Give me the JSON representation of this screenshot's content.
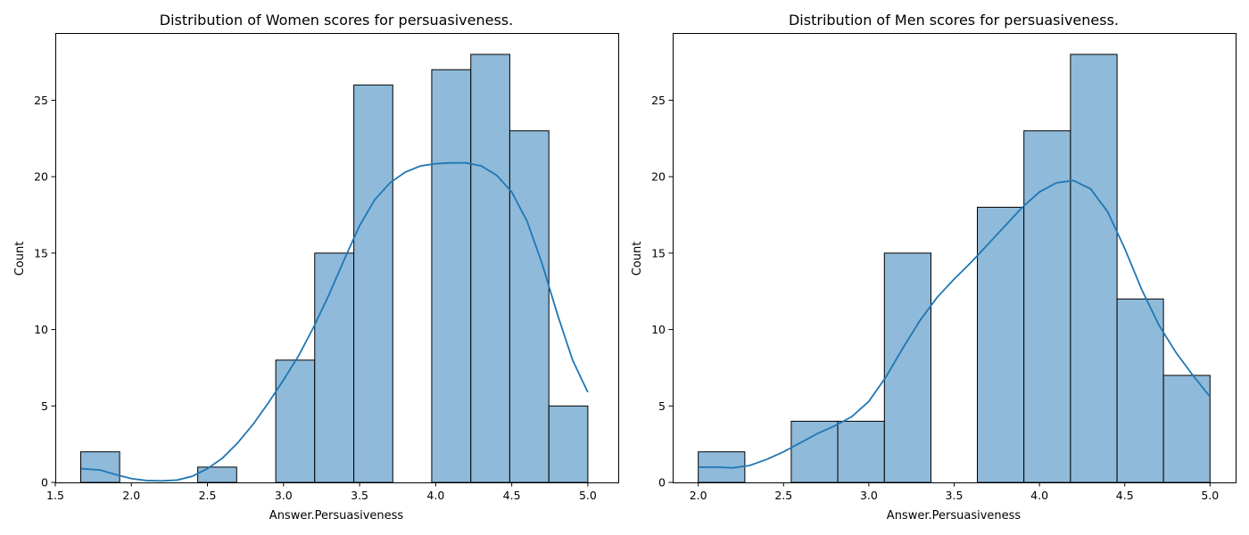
{
  "chart_data": [
    {
      "type": "histogram",
      "title": "Distribution of Women scores for persuasiveness.",
      "xlabel": "Answer.Persuasiveness",
      "ylabel": "Count",
      "xlim": [
        1.5,
        5.2
      ],
      "ylim": [
        0,
        29.4
      ],
      "xticks": [
        1.5,
        2.0,
        2.5,
        3.0,
        3.5,
        4.0,
        4.5,
        5.0
      ],
      "xtick_labels": [
        "1.5",
        "2.0",
        "2.5",
        "3.0",
        "3.5",
        "4.0",
        "4.5",
        "5.0"
      ],
      "yticks": [
        0,
        5,
        10,
        15,
        20,
        25
      ],
      "ytick_labels": [
        "0",
        "5",
        "10",
        "15",
        "20",
        "25"
      ],
      "bins": [
        {
          "x0": 1.667,
          "x1": 1.923,
          "count": 2
        },
        {
          "x0": 1.923,
          "x1": 2.179,
          "count": 0
        },
        {
          "x0": 2.179,
          "x1": 2.436,
          "count": 0
        },
        {
          "x0": 2.436,
          "x1": 2.692,
          "count": 1
        },
        {
          "x0": 2.692,
          "x1": 2.949,
          "count": 0
        },
        {
          "x0": 2.949,
          "x1": 3.205,
          "count": 8
        },
        {
          "x0": 3.205,
          "x1": 3.462,
          "count": 15
        },
        {
          "x0": 3.462,
          "x1": 3.718,
          "count": 26
        },
        {
          "x0": 3.718,
          "x1": 3.974,
          "count": 0
        },
        {
          "x0": 3.974,
          "x1": 4.231,
          "count": 27
        },
        {
          "x0": 4.231,
          "x1": 4.487,
          "count": 28
        },
        {
          "x0": 4.487,
          "x1": 4.744,
          "count": 23
        },
        {
          "x0": 4.744,
          "x1": 5.0,
          "count": 5
        }
      ],
      "kde": {
        "x": [
          1.67,
          1.8,
          1.9,
          2.0,
          2.1,
          2.2,
          2.3,
          2.4,
          2.5,
          2.6,
          2.7,
          2.8,
          2.9,
          3.0,
          3.1,
          3.2,
          3.3,
          3.4,
          3.5,
          3.6,
          3.7,
          3.8,
          3.9,
          4.0,
          4.1,
          4.2,
          4.3,
          4.4,
          4.5,
          4.6,
          4.7,
          4.8,
          4.9,
          5.0
        ],
        "y": [
          0.9,
          0.8,
          0.5,
          0.25,
          0.12,
          0.1,
          0.15,
          0.4,
          0.9,
          1.6,
          2.6,
          3.8,
          5.2,
          6.7,
          8.3,
          10.2,
          12.3,
          14.6,
          16.8,
          18.5,
          19.6,
          20.3,
          20.7,
          20.85,
          20.9,
          20.9,
          20.7,
          20.1,
          19.0,
          17.1,
          14.3,
          11.0,
          8.0,
          5.9
        ]
      }
    },
    {
      "type": "histogram",
      "title": "Distribution of Men scores for persuasiveness.",
      "xlabel": "Answer.Persuasiveness",
      "ylabel": "Count",
      "xlim": [
        1.85,
        5.15
      ],
      "ylim": [
        0,
        29.4
      ],
      "xticks": [
        2.0,
        2.5,
        3.0,
        3.5,
        4.0,
        4.5,
        5.0
      ],
      "xtick_labels": [
        "2.0",
        "2.5",
        "3.0",
        "3.5",
        "4.0",
        "4.5",
        "5.0"
      ],
      "yticks": [
        0,
        5,
        10,
        15,
        20,
        25
      ],
      "ytick_labels": [
        "0",
        "5",
        "10",
        "15",
        "20",
        "25"
      ],
      "bins": [
        {
          "x0": 2.0,
          "x1": 2.273,
          "count": 2
        },
        {
          "x0": 2.273,
          "x1": 2.545,
          "count": 0
        },
        {
          "x0": 2.545,
          "x1": 2.818,
          "count": 4
        },
        {
          "x0": 2.818,
          "x1": 3.091,
          "count": 4
        },
        {
          "x0": 3.091,
          "x1": 3.364,
          "count": 15
        },
        {
          "x0": 3.364,
          "x1": 3.636,
          "count": 0
        },
        {
          "x0": 3.636,
          "x1": 3.909,
          "count": 18
        },
        {
          "x0": 3.909,
          "x1": 4.182,
          "count": 23
        },
        {
          "x0": 4.182,
          "x1": 4.455,
          "count": 28
        },
        {
          "x0": 4.455,
          "x1": 4.727,
          "count": 12
        },
        {
          "x0": 4.727,
          "x1": 5.0,
          "count": 7
        }
      ],
      "kde": {
        "x": [
          2.0,
          2.1,
          2.2,
          2.3,
          2.4,
          2.5,
          2.6,
          2.7,
          2.8,
          2.9,
          3.0,
          3.1,
          3.2,
          3.3,
          3.4,
          3.5,
          3.6,
          3.7,
          3.8,
          3.9,
          4.0,
          4.1,
          4.2,
          4.3,
          4.4,
          4.5,
          4.6,
          4.7,
          4.8,
          4.9,
          5.0
        ],
        "y": [
          1.0,
          1.0,
          0.95,
          1.1,
          1.5,
          2.0,
          2.6,
          3.2,
          3.7,
          4.3,
          5.3,
          6.9,
          8.8,
          10.6,
          12.1,
          13.3,
          14.4,
          15.6,
          16.8,
          18.0,
          19.0,
          19.6,
          19.75,
          19.2,
          17.7,
          15.3,
          12.6,
          10.3,
          8.5,
          7.0,
          5.6
        ]
      }
    }
  ]
}
